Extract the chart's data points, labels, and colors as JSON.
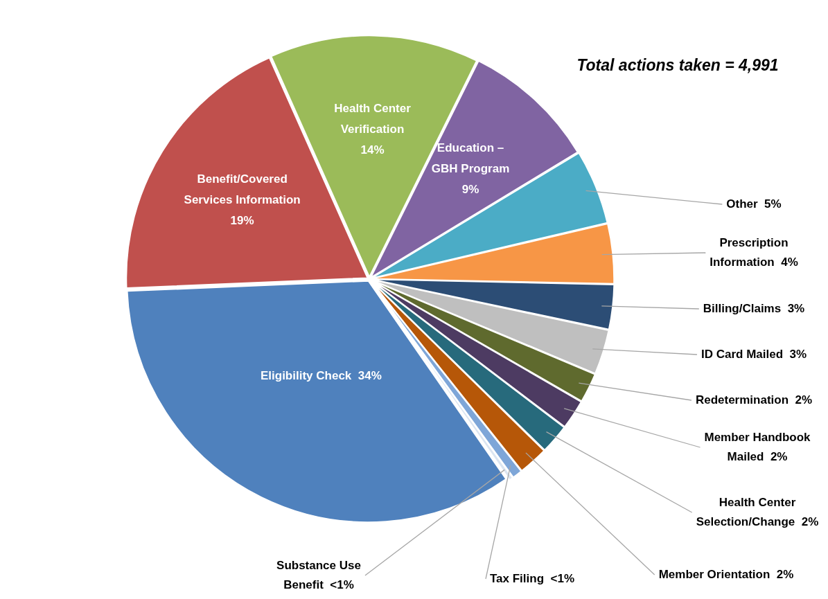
{
  "chart_data": {
    "type": "pie",
    "categories": [
      "Health Center Verification",
      "Education – GBH Program",
      "Other",
      "Prescription Information",
      "Billing/Claims",
      "ID Card Mailed",
      "Redetermination",
      "Member Handbook Mailed",
      "Health Center Selection/Change",
      "Member Orientation",
      "Tax Filing",
      "Substance Use Benefit",
      "Eligibility Check",
      "Benefit/Covered Services Information"
    ],
    "values": [
      14,
      9,
      5,
      4,
      3,
      3,
      2,
      2,
      2,
      2,
      0.7,
      0.3,
      34,
      19
    ],
    "value_labels": [
      "14%",
      "9%",
      "5%",
      "4%",
      "3%",
      "3%",
      "2%",
      "2%",
      "2%",
      "2%",
      "<1%",
      "<1%",
      "34%",
      "19%"
    ],
    "colors": [
      "#9bbb59",
      "#8064a2",
      "#4bacc6",
      "#f79646",
      "#2c4d75",
      "#bfbfbf",
      "#5f6a2e",
      "#4d3b62",
      "#276a7c",
      "#b65708",
      "#7ea6d8",
      "#dbe5f1",
      "#4f81bd",
      "#c0504d"
    ],
    "annotations": [
      "Total actions taken = 4,991"
    ],
    "legend": false
  }
}
